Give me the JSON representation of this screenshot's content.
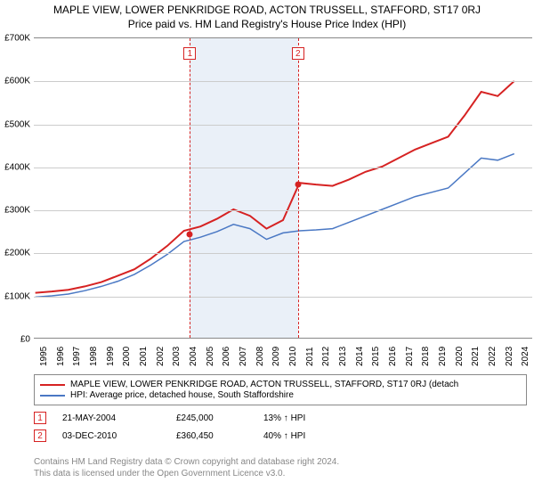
{
  "title_main": "MAPLE VIEW, LOWER PENKRIDGE ROAD, ACTON TRUSSELL, STAFFORD, ST17 0RJ",
  "title_sub": "Price paid vs. HM Land Registry's House Price Index (HPI)",
  "chart": {
    "type": "line",
    "x_years": [
      1995,
      1996,
      1997,
      1998,
      1999,
      2000,
      2001,
      2002,
      2003,
      2004,
      2005,
      2006,
      2007,
      2008,
      2009,
      2010,
      2011,
      2012,
      2013,
      2014,
      2015,
      2016,
      2017,
      2018,
      2019,
      2020,
      2021,
      2022,
      2023,
      2024
    ],
    "ylim": [
      0,
      700000
    ],
    "ytick_step": 100000,
    "ytick_labels": [
      "£0",
      "£100K",
      "£200K",
      "£300K",
      "£400K",
      "£500K",
      "£600K",
      "£700K"
    ],
    "background_color": "#ffffff",
    "grid_color": "#cccccc",
    "shaded_band_color": "#eaf0f8",
    "shaded_band_start": 2004.4,
    "shaded_band_end": 2010.9,
    "series": {
      "property": {
        "color": "#d62222",
        "line_width": 2,
        "values": [
          105000,
          108000,
          112000,
          120000,
          130000,
          145000,
          160000,
          185000,
          215000,
          250000,
          260000,
          278000,
          300000,
          285000,
          255000,
          275000,
          362000,
          358000,
          355000,
          370000,
          388000,
          400000,
          420000,
          440000,
          455000,
          470000,
          520000,
          575000,
          565000,
          600000
        ]
      },
      "hpi": {
        "color": "#4a78c4",
        "line_width": 1.5,
        "values": [
          95000,
          98000,
          102000,
          110000,
          120000,
          132000,
          148000,
          170000,
          195000,
          225000,
          235000,
          248000,
          265000,
          255000,
          230000,
          245000,
          250000,
          252000,
          255000,
          270000,
          285000,
          300000,
          315000,
          330000,
          340000,
          350000,
          385000,
          420000,
          415000,
          430000
        ]
      }
    },
    "markers": [
      {
        "n": "1",
        "year": 2004.4,
        "value": 245000,
        "color": "#d62222"
      },
      {
        "n": "2",
        "year": 2010.9,
        "value": 360450,
        "color": "#d62222"
      }
    ]
  },
  "legend": {
    "property": "MAPLE VIEW, LOWER PENKRIDGE ROAD, ACTON TRUSSELL, STAFFORD, ST17 0RJ (detach",
    "hpi": "HPI: Average price, detached house, South Staffordshire"
  },
  "sales": [
    {
      "n": "1",
      "date": "21-MAY-2004",
      "price": "£245,000",
      "diff": "13% ↑ HPI",
      "color": "#d62222"
    },
    {
      "n": "2",
      "date": "03-DEC-2010",
      "price": "£360,450",
      "diff": "40% ↑ HPI",
      "color": "#d62222"
    }
  ],
  "footer_line1": "Contains HM Land Registry data © Crown copyright and database right 2024.",
  "footer_line2": "This data is licensed under the Open Government Licence v3.0."
}
